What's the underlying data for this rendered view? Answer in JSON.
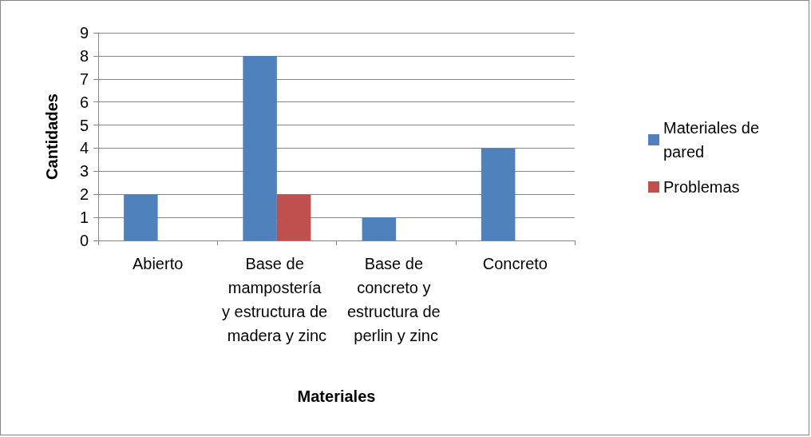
{
  "chart_data": {
    "type": "bar",
    "xlabel": "Materiales",
    "ylabel": "Cantidades",
    "categories": [
      "Abierto",
      "Base de mampostería y estructura de madera y zinc",
      "Base de concreto y estructura de perlin y zinc",
      "Concreto"
    ],
    "series": [
      {
        "name": "Materiales de pared",
        "color": "#4f81bd",
        "values": [
          2,
          8,
          1,
          4
        ]
      },
      {
        "name": "Problemas",
        "color": "#c0504d",
        "values": [
          null,
          2,
          null,
          null
        ]
      }
    ],
    "ylim": [
      0,
      9
    ],
    "yticks": [
      0,
      1,
      2,
      3,
      4,
      5,
      6,
      7,
      8,
      9
    ],
    "grid": "y",
    "legend": "right"
  }
}
